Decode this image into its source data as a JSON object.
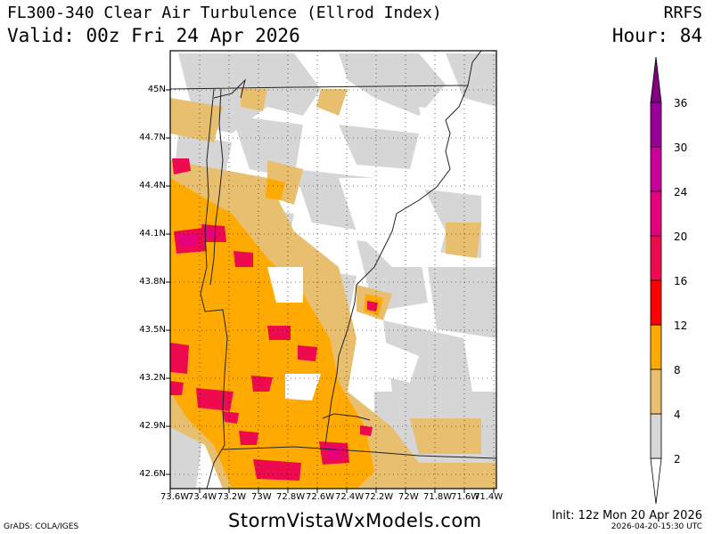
{
  "header": {
    "title": "FL300-340 Clear Air Turbulence (Ellrod Index)",
    "valid": "Valid: 00z Fri 24 Apr 2026",
    "model": "RRFS",
    "hour": "Hour: 84"
  },
  "footer": {
    "grads": "GrADS: COLA/IGES",
    "site": "StormVistaWxModels.com",
    "init": "Init: 12z Mon 20 Apr 2026",
    "timestamp": "2026-04-20-15:30 UTC"
  },
  "map": {
    "lat_labels": [
      "45N",
      "44.7N",
      "44.4N",
      "44.1N",
      "43.8N",
      "43.5N",
      "43.2N",
      "42.9N",
      "42.6N"
    ],
    "lon_labels": [
      "73.6W",
      "73.4W",
      "73.2W",
      "73W",
      "72.8W",
      "72.6W",
      "72.4W",
      "72.2W",
      "72W",
      "71.8W",
      "71.6W",
      "71.4W"
    ],
    "lat_values": [
      45.0,
      44.7,
      44.4,
      44.1,
      43.8,
      43.5,
      43.2,
      42.9,
      42.6
    ],
    "lon_values": [
      -73.6,
      -73.4,
      -73.2,
      -73.0,
      -72.8,
      -72.6,
      -72.4,
      -72.2,
      -72.0,
      -71.8,
      -71.6,
      -71.4
    ]
  },
  "colorbar": {
    "levels": [
      "2",
      "4",
      "8",
      "12",
      "16",
      "20",
      "24",
      "30",
      "36"
    ],
    "colors": [
      "#d6d6d6",
      "#e8bf6e",
      "#ffaa00",
      "#ff0000",
      "#ee0a4e",
      "#e6007e",
      "#cc0099",
      "#990099",
      "#800080"
    ]
  }
}
